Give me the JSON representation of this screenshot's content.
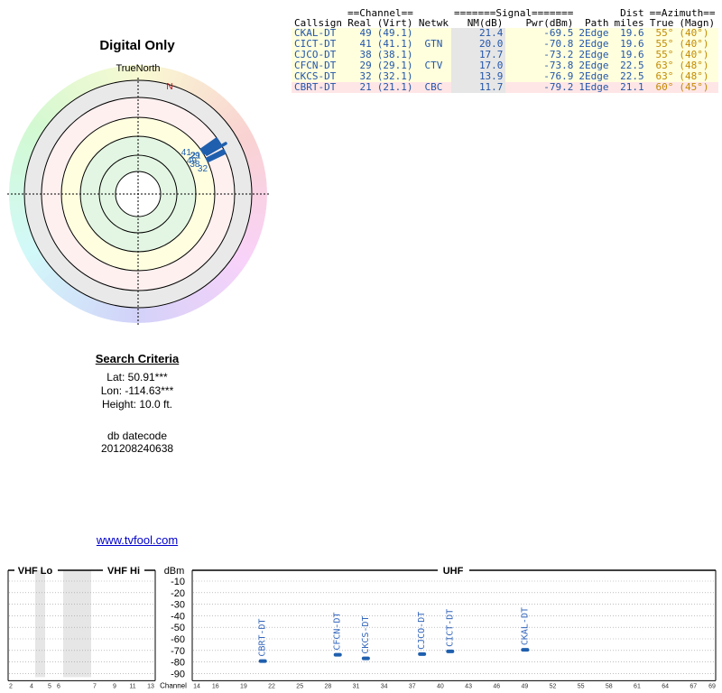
{
  "radar": {
    "title": "Digital Only",
    "north_label": "TrueNorth",
    "n_marker": "N",
    "station_markers": [
      {
        "channel": "49",
        "azimuth_true": 55,
        "band": "yellow"
      },
      {
        "channel": "41",
        "azimuth_true": 55,
        "band": "yellow"
      },
      {
        "channel": "38",
        "azimuth_true": 55,
        "band": "yellow"
      },
      {
        "channel": "29",
        "azimuth_true": 63,
        "band": "yellow"
      },
      {
        "channel": "32",
        "azimuth_true": 63,
        "band": "yellow"
      },
      {
        "channel": "21",
        "azimuth_true": 60,
        "band": "red"
      }
    ]
  },
  "search": {
    "header": "Search Criteria",
    "lat": "Lat: 50.91***",
    "lon": "Lon: -114.63***",
    "height": "Height: 10.0 ft."
  },
  "db": {
    "label": "db datecode",
    "value": "201208240638"
  },
  "link": "www.tvfool.com",
  "table": {
    "group_headers": {
      "channel": "==Channel==",
      "signal": "=======Signal=======",
      "dist": "Dist",
      "azimuth": "==Azimuth=="
    },
    "columns": {
      "callsign": "Callsign",
      "real": "Real",
      "virt": "(Virt)",
      "netwk": "Netwk",
      "nm": "NM(dB)",
      "pwr": "Pwr(dBm)",
      "path": "Path",
      "miles": "miles",
      "true": "True",
      "magn": "(Magn)"
    },
    "rows": [
      {
        "callsign": "CKAL-DT",
        "real": "49",
        "virt": "(49.1)",
        "netwk": "",
        "nm": "21.4",
        "pwr": "-69.5",
        "path": "2Edge",
        "dist": "19.6",
        "az_true": "55°",
        "az_magn": "(40°)",
        "color": "#ffffdd"
      },
      {
        "callsign": "CICT-DT",
        "real": "41",
        "virt": "(41.1)",
        "netwk": "GTN",
        "nm": "20.0",
        "pwr": "-70.8",
        "path": "2Edge",
        "dist": "19.6",
        "az_true": "55°",
        "az_magn": "(40°)",
        "color": "#ffffdd"
      },
      {
        "callsign": "CJCO-DT",
        "real": "38",
        "virt": "(38.1)",
        "netwk": "",
        "nm": "17.7",
        "pwr": "-73.2",
        "path": "2Edge",
        "dist": "19.6",
        "az_true": "55°",
        "az_magn": "(40°)",
        "color": "#ffffdd"
      },
      {
        "callsign": "CFCN-DT",
        "real": "29",
        "virt": "(29.1)",
        "netwk": "CTV",
        "nm": "17.0",
        "pwr": "-73.8",
        "path": "2Edge",
        "dist": "22.5",
        "az_true": "63°",
        "az_magn": "(48°)",
        "color": "#ffffdd"
      },
      {
        "callsign": "CKCS-DT",
        "real": "32",
        "virt": "(32.1)",
        "netwk": "",
        "nm": "13.9",
        "pwr": "-76.9",
        "path": "2Edge",
        "dist": "22.5",
        "az_true": "63°",
        "az_magn": "(48°)",
        "color": "#ffffdd"
      },
      {
        "callsign": "CBRT-DT",
        "real": "21",
        "virt": "(21.1)",
        "netwk": "CBC",
        "nm": "11.7",
        "pwr": "-79.2",
        "path": "1Edge",
        "dist": "21.1",
        "az_true": "60°",
        "az_magn": "(45°)",
        "color": "#ffe6e6"
      }
    ]
  },
  "spectrum": {
    "section_labels": {
      "vhf_lo": "VHF Lo",
      "vhf_hi": "VHF Hi",
      "dbm": "dBm",
      "uhf": "UHF"
    },
    "dbm_ticks": [
      "-10",
      "-20",
      "-30",
      "-40",
      "-50",
      "-60",
      "-70",
      "-80",
      "-90"
    ],
    "vhf_lo_ticks": [
      "2",
      "4",
      "5",
      "6"
    ],
    "vhf_hi_ticks": [
      "7",
      "9",
      "11",
      "13"
    ],
    "channel_axis_label": "Channel",
    "uhf_ticks": [
      "14",
      "16",
      "19",
      "22",
      "25",
      "28",
      "31",
      "34",
      "37",
      "40",
      "43",
      "46",
      "49",
      "52",
      "55",
      "58",
      "61",
      "64",
      "67",
      "69"
    ],
    "signals": [
      {
        "callsign": "CBRT-DT",
        "channel": 21,
        "dbm": -79.2
      },
      {
        "callsign": "CFCN-DT",
        "channel": 29,
        "dbm": -73.8
      },
      {
        "callsign": "CKCS-DT",
        "channel": 32,
        "dbm": -76.9
      },
      {
        "callsign": "CJCO-DT",
        "channel": 38,
        "dbm": -73.2
      },
      {
        "callsign": "CICT-DT",
        "channel": 41,
        "dbm": -70.8
      },
      {
        "callsign": "CKAL-DT",
        "channel": 49,
        "dbm": -69.5
      }
    ],
    "colors": {
      "marker": "#1f5fae",
      "label": "#3366bb",
      "shade": "#e6e6e6"
    }
  }
}
